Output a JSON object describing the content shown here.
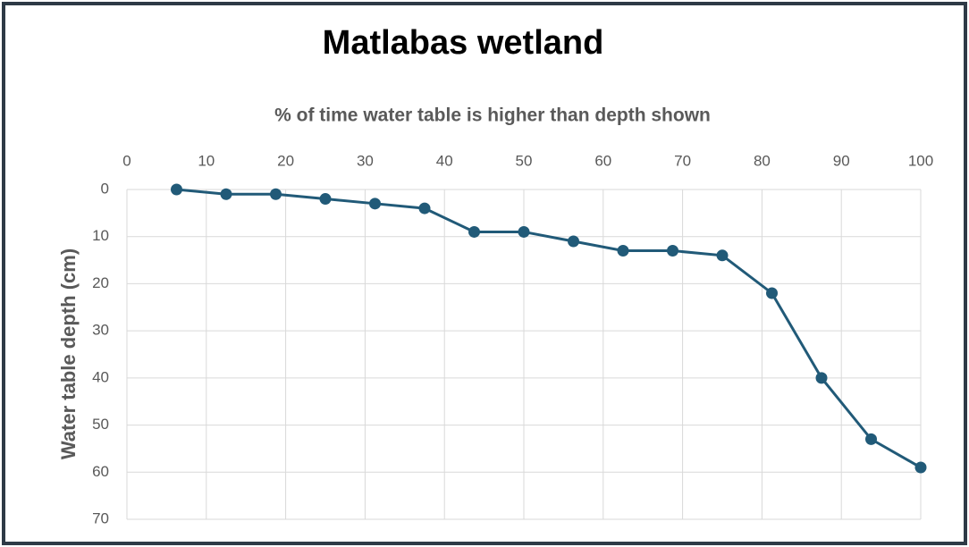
{
  "chart_data": {
    "type": "line",
    "title": "Matlabas wetland",
    "x_label": "% of time water table is higher than depth shown",
    "y_label": "Water table depth (cm)",
    "x": [
      6.25,
      12.5,
      18.75,
      25,
      31.25,
      37.5,
      43.75,
      50,
      56.25,
      62.5,
      68.75,
      75,
      81.25,
      87.5,
      93.75,
      100
    ],
    "series": [
      {
        "color": "#215a78",
        "values": [
          0,
          1,
          1,
          2,
          3,
          4,
          9,
          9,
          11,
          13,
          13,
          14,
          22,
          40,
          53,
          59
        ]
      }
    ],
    "xlim": [
      0,
      100
    ],
    "xticks": [
      0,
      10,
      20,
      30,
      40,
      50,
      60,
      70,
      80,
      90,
      100
    ],
    "ylim": [
      0,
      70
    ],
    "yticks": [
      0,
      10,
      20,
      30,
      40,
      50,
      60,
      70
    ],
    "y_reversed": true,
    "x_axis_position": "top",
    "grid": true
  }
}
